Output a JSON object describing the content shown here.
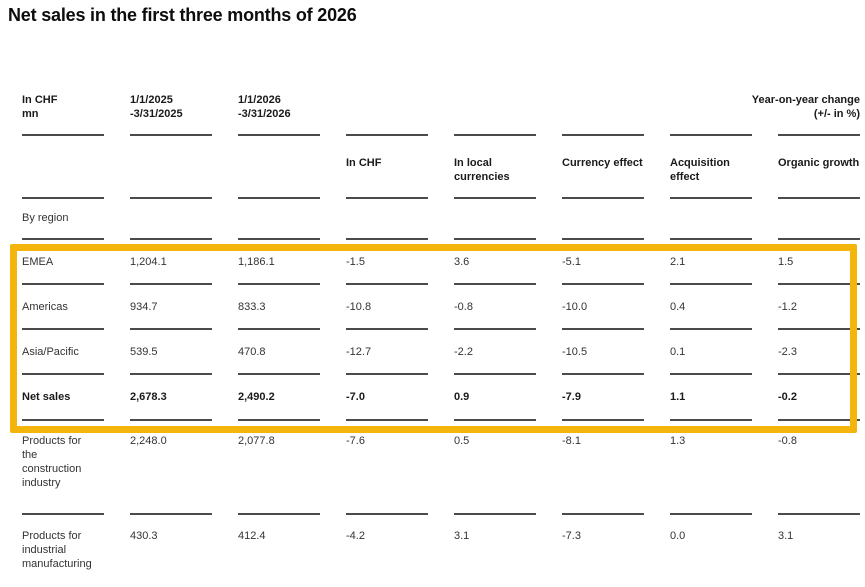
{
  "title": "Net sales in the first three months of 2026",
  "highlight_color": "#F3B50B",
  "table": {
    "unit_header": {
      "line1": "In CHF",
      "line2": "mn"
    },
    "period_2025": {
      "line1": "1/1/2025",
      "line2": "-3/31/2025"
    },
    "period_2026": {
      "line1": "1/1/2026",
      "line2": "-3/31/2026"
    },
    "yoy_header": {
      "line1": "Year-on-year change",
      "line2": "(+/- in %)"
    },
    "subheaders": {
      "in_chf": "In CHF",
      "local_currencies": "In local currencies",
      "currency_effect": "Currency effect",
      "acquisition_effect": "Acquisition effect",
      "organic_growth": "Organic growth"
    },
    "section_label": "By region",
    "rows": [
      {
        "label": "EMEA",
        "values": [
          "1,204.1",
          "1,186.1",
          "-1.5",
          "3.6",
          "-5.1",
          "2.1",
          "1.5"
        ]
      },
      {
        "label": "Americas",
        "values": [
          "934.7",
          "833.3",
          "-10.8",
          "-0.8",
          "-10.0",
          "0.4",
          "-1.2"
        ]
      },
      {
        "label": "Asia/Pacific",
        "values": [
          "539.5",
          "470.8",
          "-12.7",
          "-2.2",
          "-10.5",
          "0.1",
          "-2.3"
        ]
      },
      {
        "label": "Net sales",
        "values": [
          "2,678.3",
          "2,490.2",
          "-7.0",
          "0.9",
          "-7.9",
          "1.1",
          "-0.2"
        ]
      },
      {
        "label": "Products for the construction industry",
        "values": [
          "2,248.0",
          "2,077.8",
          "-7.6",
          "0.5",
          "-8.1",
          "1.3",
          "-0.8"
        ]
      },
      {
        "label": "Products for industrial manufacturing",
        "values": [
          "430.3",
          "412.4",
          "-4.2",
          "3.1",
          "-7.3",
          "0.0",
          "3.1"
        ]
      }
    ]
  }
}
